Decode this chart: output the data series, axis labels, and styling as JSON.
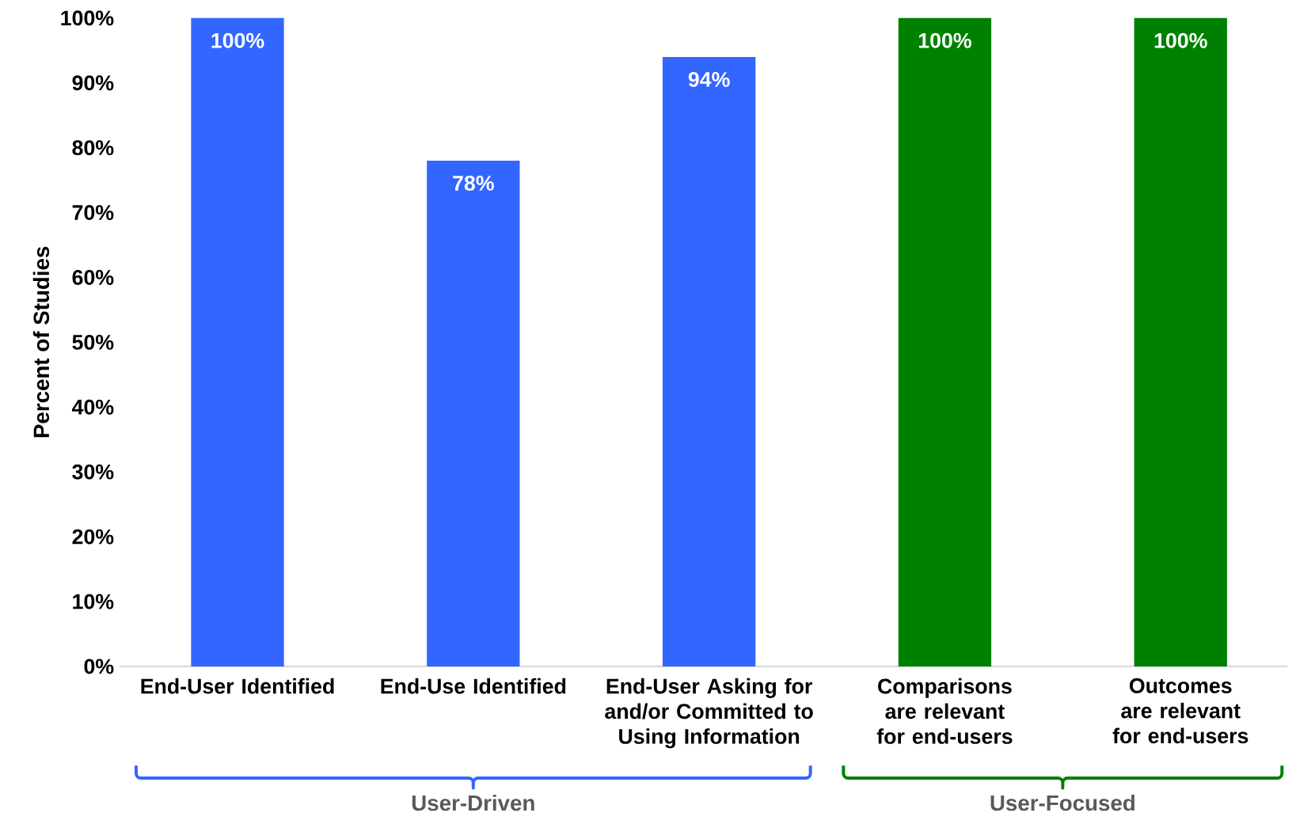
{
  "chart_data": {
    "type": "bar",
    "ylabel": "Percent of Studies",
    "categories": [
      "End-User Identified",
      "End-Use Identified",
      "End-User Asking for and/or Committed to Using Information",
      "Comparisons are relevant for end-users",
      "Outcomes are relevant for end-users"
    ],
    "values": [
      100,
      78,
      94,
      100,
      100
    ],
    "colors": [
      "#3366ff",
      "#3366ff",
      "#3366ff",
      "#008000",
      "#008000"
    ],
    "value_labels": [
      "100%",
      "78%",
      "94%",
      "100%",
      "100%"
    ],
    "ylim": [
      0,
      100
    ],
    "yticks": [
      {
        "value": 0,
        "label": "0%"
      },
      {
        "value": 10,
        "label": "10%"
      },
      {
        "value": 20,
        "label": "20%"
      },
      {
        "value": 30,
        "label": "30%"
      },
      {
        "value": 40,
        "label": "40%"
      },
      {
        "value": 50,
        "label": "50%"
      },
      {
        "value": 60,
        "label": "60%"
      },
      {
        "value": 70,
        "label": "70%"
      },
      {
        "value": 80,
        "label": "80%"
      },
      {
        "value": 90,
        "label": "90%"
      },
      {
        "value": 100,
        "label": "100%"
      }
    ],
    "annotations": [
      "User-Driven",
      "User-Focused"
    ]
  }
}
